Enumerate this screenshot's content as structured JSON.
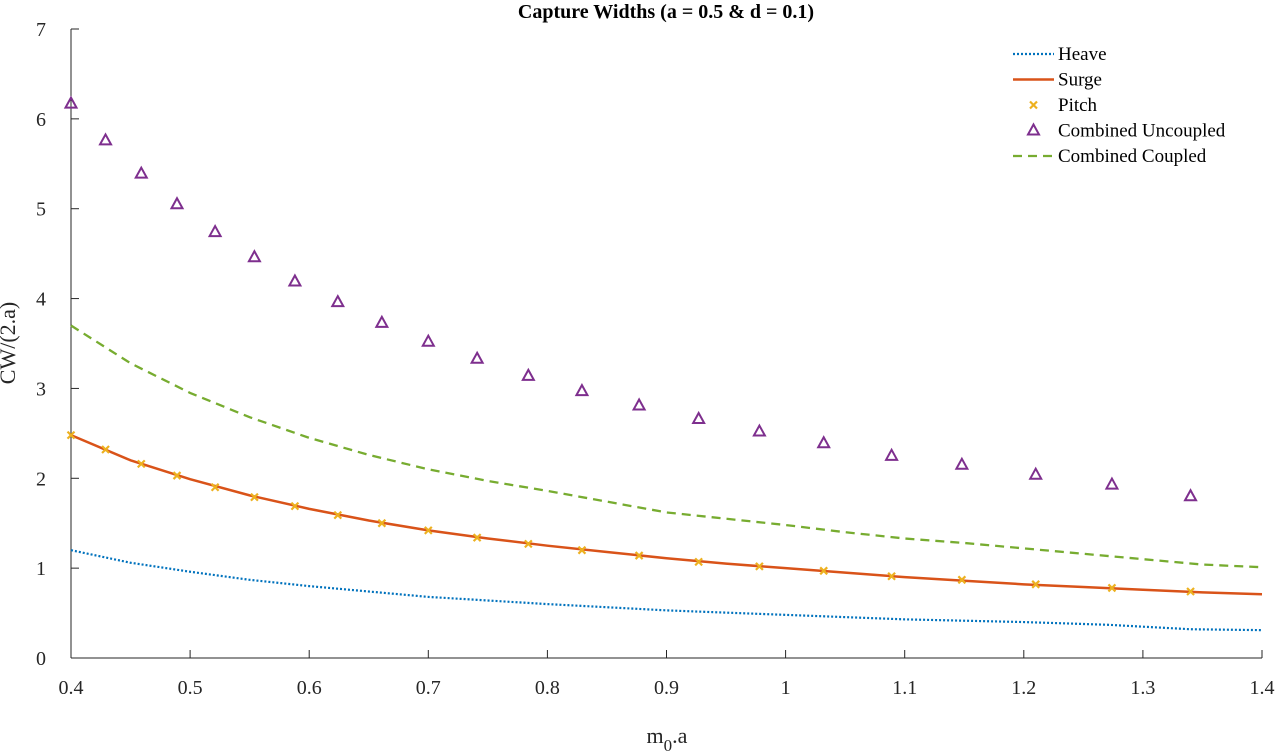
{
  "chart_data": {
    "type": "line",
    "title": "Capture Widths (a = 0.5 & d = 0.1)",
    "xlabel_main": "m",
    "xlabel_sub": "0",
    "xlabel_tail": ".a",
    "ylabel": "CW/(2.a)",
    "xlim": [
      0.4,
      1.4
    ],
    "ylim": [
      0,
      7
    ],
    "xticks": [
      0.4,
      0.5,
      0.6,
      0.7,
      0.8,
      0.9,
      1,
      1.1,
      1.2,
      1.3,
      1.4
    ],
    "yticks": [
      0,
      1,
      2,
      3,
      4,
      5,
      6,
      7
    ],
    "grid": false,
    "legend_position": "top-right",
    "series": [
      {
        "name": "Heave",
        "style": "dotted",
        "color": "#0072BD",
        "x": [
          0.4,
          0.45,
          0.5,
          0.55,
          0.6,
          0.7,
          0.8,
          0.9,
          1.0,
          1.1,
          1.2,
          1.27,
          1.34,
          1.4
        ],
        "y": [
          1.2,
          1.06,
          0.96,
          0.87,
          0.8,
          0.68,
          0.6,
          0.53,
          0.48,
          0.43,
          0.4,
          0.37,
          0.32,
          0.31
        ]
      },
      {
        "name": "Surge",
        "style": "solid",
        "color": "#D95319",
        "x": [
          0.4,
          0.45,
          0.5,
          0.55,
          0.6,
          0.65,
          0.7,
          0.75,
          0.8,
          0.85,
          0.9,
          0.95,
          1.0,
          1.05,
          1.1,
          1.15,
          1.2,
          1.25,
          1.3,
          1.35,
          1.4
        ],
        "y": [
          2.48,
          2.2,
          1.99,
          1.81,
          1.66,
          1.53,
          1.42,
          1.33,
          1.25,
          1.18,
          1.11,
          1.05,
          1.0,
          0.95,
          0.9,
          0.86,
          0.82,
          0.79,
          0.76,
          0.73,
          0.71
        ]
      },
      {
        "name": "Pitch",
        "style": "markers-x",
        "color": "#EDB120",
        "x": [
          0.4,
          0.429,
          0.459,
          0.489,
          0.521,
          0.554,
          0.588,
          0.624,
          0.661,
          0.7,
          0.741,
          0.784,
          0.829,
          0.877,
          0.927,
          0.978,
          1.032,
          1.089,
          1.148,
          1.21,
          1.274,
          1.34
        ],
        "y": [
          2.48,
          2.32,
          2.16,
          2.03,
          1.9,
          1.79,
          1.69,
          1.59,
          1.5,
          1.42,
          1.34,
          1.27,
          1.2,
          1.14,
          1.07,
          1.02,
          0.97,
          0.91,
          0.87,
          0.82,
          0.78,
          0.74
        ]
      },
      {
        "name": "Combined Uncoupled",
        "style": "markers-triangle",
        "color": "#7E2F8E",
        "x": [
          0.4,
          0.429,
          0.459,
          0.489,
          0.521,
          0.554,
          0.588,
          0.624,
          0.661,
          0.7,
          0.741,
          0.784,
          0.829,
          0.877,
          0.927,
          0.978,
          1.032,
          1.089,
          1.148,
          1.21,
          1.274,
          1.34
        ],
        "y": [
          6.17,
          5.76,
          5.39,
          5.05,
          4.74,
          4.46,
          4.19,
          3.96,
          3.73,
          3.52,
          3.33,
          3.14,
          2.97,
          2.81,
          2.66,
          2.52,
          2.39,
          2.25,
          2.15,
          2.04,
          1.93,
          1.8
        ]
      },
      {
        "name": "Combined Coupled",
        "style": "dashed",
        "color": "#77AC30",
        "x": [
          0.4,
          0.45,
          0.5,
          0.55,
          0.6,
          0.65,
          0.7,
          0.75,
          0.8,
          0.85,
          0.9,
          0.95,
          1.0,
          1.05,
          1.1,
          1.15,
          1.2,
          1.25,
          1.3,
          1.35,
          1.4
        ],
        "y": [
          3.7,
          3.28,
          2.95,
          2.68,
          2.45,
          2.26,
          2.1,
          1.97,
          1.86,
          1.74,
          1.62,
          1.55,
          1.48,
          1.4,
          1.33,
          1.28,
          1.22,
          1.16,
          1.1,
          1.04,
          1.01
        ]
      }
    ]
  }
}
